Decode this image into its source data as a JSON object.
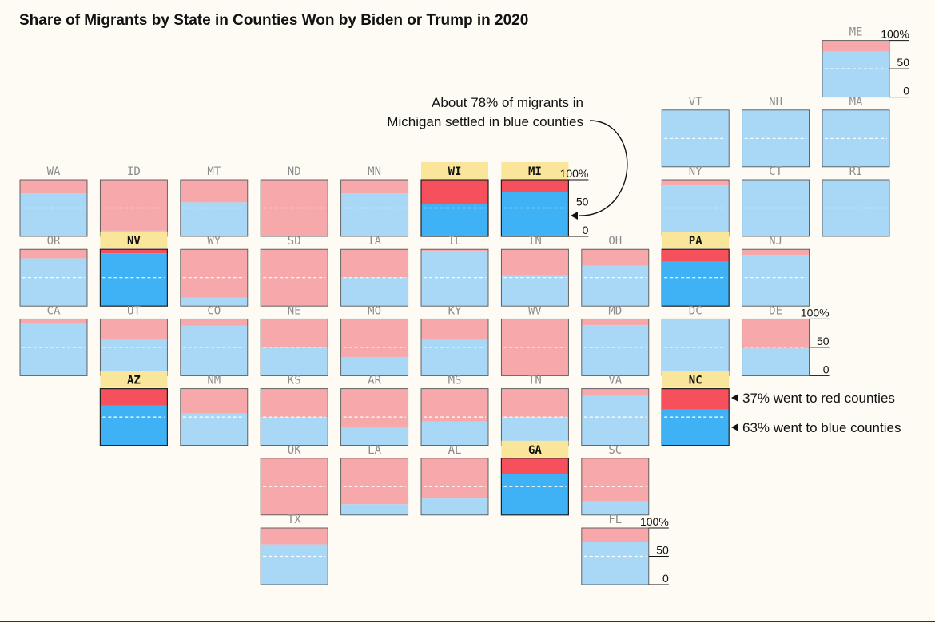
{
  "title": "Share of Migrants by State in Counties Won by Biden or Trump in 2020",
  "colors": {
    "red_light": "#f7a8aa",
    "blue_light": "#a8d8f6",
    "red_swing": "#f5505b",
    "blue_swing": "#3fb2f5",
    "swing_label_bg": "#fae69a",
    "background": "#fdfbf4"
  },
  "annotations": {
    "michigan_line1": "About 78% of migrants in",
    "michigan_line2": "Michigan settled in blue counties",
    "nc_red": "37% went to red counties",
    "nc_blue": "63% went to blue counties"
  },
  "chart_data": {
    "type": "bar",
    "stacked": true,
    "layout": "tile-grid map",
    "y_unit": "percent",
    "ylim": [
      0,
      100
    ],
    "y_ticks": [
      "100%",
      "50",
      "0"
    ],
    "series": [
      {
        "name": "red counties"
      },
      {
        "name": "blue counties"
      }
    ],
    "states": [
      {
        "abbr": "ME",
        "blue": 80,
        "swing": false
      },
      {
        "abbr": "VT",
        "blue": 100,
        "swing": false
      },
      {
        "abbr": "NH",
        "blue": 100,
        "swing": false
      },
      {
        "abbr": "MA",
        "blue": 100,
        "swing": false
      },
      {
        "abbr": "WA",
        "blue": 76,
        "swing": false
      },
      {
        "abbr": "ID",
        "blue": 10,
        "swing": false
      },
      {
        "abbr": "MT",
        "blue": 60,
        "swing": false
      },
      {
        "abbr": "ND",
        "blue": 0,
        "swing": false
      },
      {
        "abbr": "MN",
        "blue": 76,
        "swing": false
      },
      {
        "abbr": "WI",
        "blue": 57,
        "swing": true
      },
      {
        "abbr": "MI",
        "blue": 78,
        "swing": true
      },
      {
        "abbr": "NY",
        "blue": 90,
        "swing": false
      },
      {
        "abbr": "CT",
        "blue": 100,
        "swing": false
      },
      {
        "abbr": "RI",
        "blue": 100,
        "swing": false
      },
      {
        "abbr": "OR",
        "blue": 84,
        "swing": false
      },
      {
        "abbr": "NV",
        "blue": 93,
        "swing": true
      },
      {
        "abbr": "WY",
        "blue": 15,
        "swing": false
      },
      {
        "abbr": "SD",
        "blue": 0,
        "swing": false
      },
      {
        "abbr": "IA",
        "blue": 50,
        "swing": false
      },
      {
        "abbr": "IL",
        "blue": 97,
        "swing": false
      },
      {
        "abbr": "IN",
        "blue": 54,
        "swing": false
      },
      {
        "abbr": "OH",
        "blue": 71,
        "swing": false
      },
      {
        "abbr": "PA",
        "blue": 78,
        "swing": true
      },
      {
        "abbr": "NJ",
        "blue": 90,
        "swing": false
      },
      {
        "abbr": "CA",
        "blue": 93,
        "swing": false
      },
      {
        "abbr": "UT",
        "blue": 63,
        "swing": false
      },
      {
        "abbr": "CO",
        "blue": 88,
        "swing": false
      },
      {
        "abbr": "NE",
        "blue": 51,
        "swing": false
      },
      {
        "abbr": "MO",
        "blue": 33,
        "swing": false
      },
      {
        "abbr": "KY",
        "blue": 63,
        "swing": false
      },
      {
        "abbr": "WV",
        "blue": 0,
        "swing": false
      },
      {
        "abbr": "MD",
        "blue": 89,
        "swing": false
      },
      {
        "abbr": "DC",
        "blue": 100,
        "swing": false
      },
      {
        "abbr": "DE",
        "blue": 48,
        "swing": false
      },
      {
        "abbr": "AZ",
        "blue": 70,
        "swing": true
      },
      {
        "abbr": "NM",
        "blue": 56,
        "swing": false
      },
      {
        "abbr": "KS",
        "blue": 50,
        "swing": false
      },
      {
        "abbr": "AR",
        "blue": 33,
        "swing": false
      },
      {
        "abbr": "MS",
        "blue": 42,
        "swing": false
      },
      {
        "abbr": "TN",
        "blue": 50,
        "swing": false
      },
      {
        "abbr": "VA",
        "blue": 87,
        "swing": false
      },
      {
        "abbr": "NC",
        "blue": 63,
        "swing": true
      },
      {
        "abbr": "OK",
        "blue": 0,
        "swing": false
      },
      {
        "abbr": "LA",
        "blue": 19,
        "swing": false
      },
      {
        "abbr": "AL",
        "blue": 29,
        "swing": false
      },
      {
        "abbr": "GA",
        "blue": 72,
        "swing": true
      },
      {
        "abbr": "SC",
        "blue": 24,
        "swing": false
      },
      {
        "abbr": "TX",
        "blue": 71,
        "swing": false
      },
      {
        "abbr": "FL",
        "blue": 75,
        "swing": false
      }
    ]
  }
}
